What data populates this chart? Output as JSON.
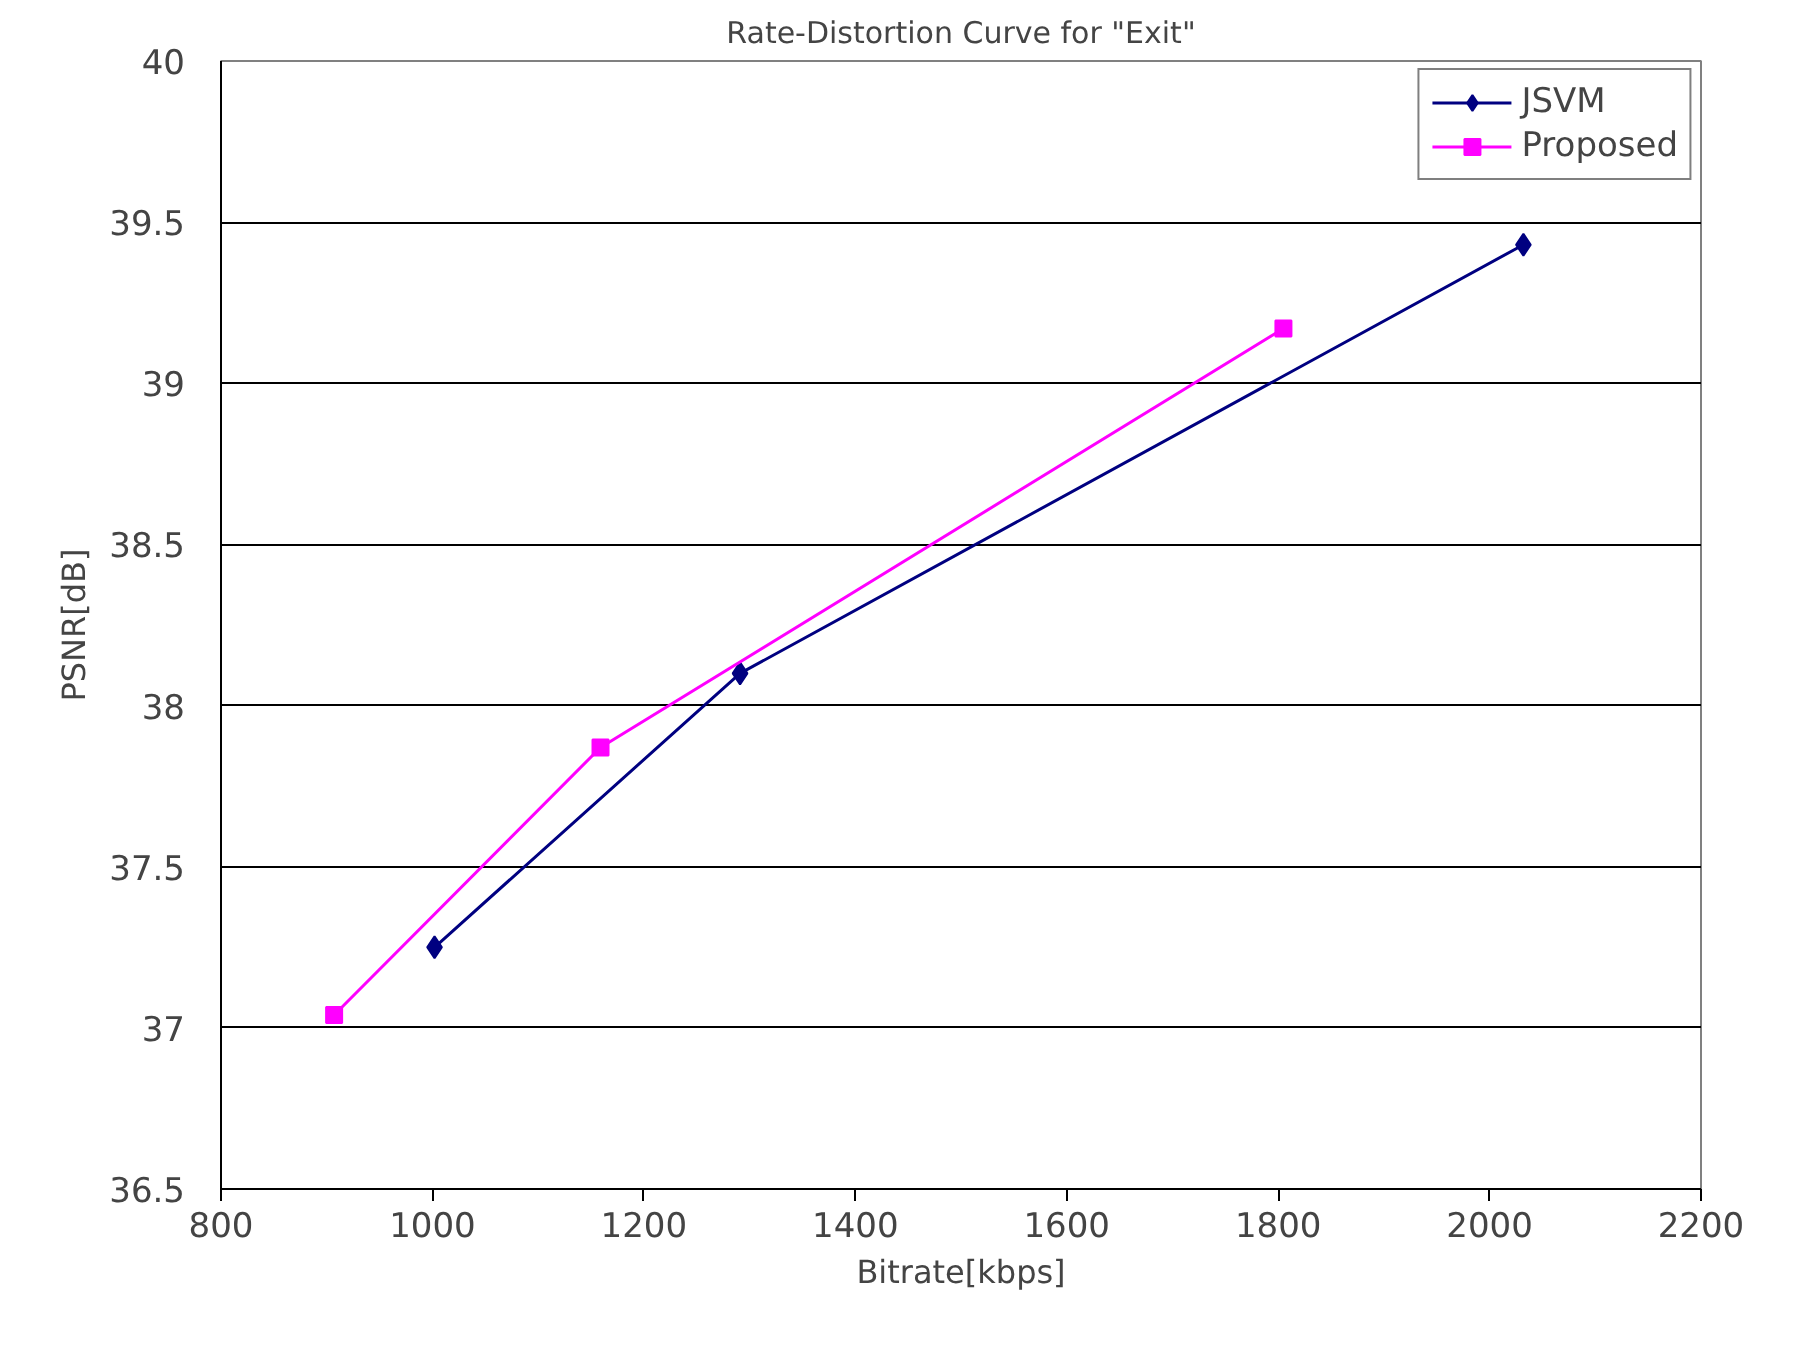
{
  "chart_data": {
    "type": "line",
    "title": "Rate-Distortion Curve for \"Exit\"",
    "xlabel": "Bitrate[kbps]",
    "ylabel": "PSNR[dB]",
    "xlim": [
      800,
      2200
    ],
    "xticks": [
      800,
      1000,
      1200,
      1400,
      1600,
      1800,
      2000,
      2200
    ],
    "ylim": [
      36.5,
      40
    ],
    "yticks": [
      36.5,
      37,
      37.5,
      38,
      38.5,
      39,
      39.5,
      40
    ],
    "grid": "y",
    "legend": "top right",
    "series": [
      {
        "name": "JSVM",
        "color": "#000080",
        "marker": "diamond",
        "x": [
          1002,
          1291,
          2032
        ],
        "values": [
          37.25,
          38.1,
          39.43
        ]
      },
      {
        "name": "Proposed",
        "color": "#ff00ff",
        "marker": "square",
        "x": [
          907,
          1159,
          1805
        ],
        "values": [
          37.04,
          37.87,
          39.17
        ]
      }
    ]
  }
}
